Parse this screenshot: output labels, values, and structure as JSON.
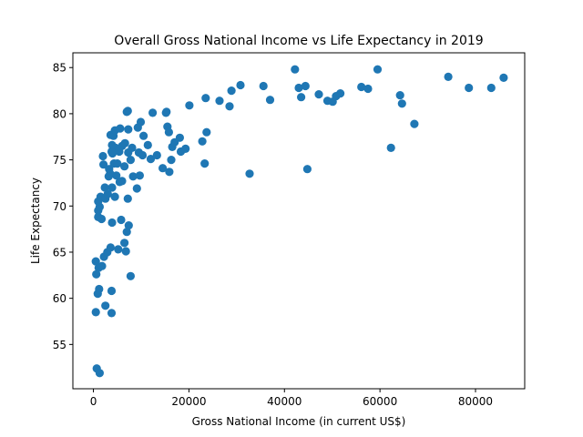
{
  "chart_data": {
    "type": "scatter",
    "title": "Overall Gross National Income vs Life Expectancy in 2019",
    "xlabel": "Gross National Income (in current US$)",
    "ylabel": "Life Expectancy",
    "xlim": [
      -4300,
      90300
    ],
    "ylim": [
      50.2,
      86.6
    ],
    "xticks": [
      0,
      20000,
      40000,
      60000,
      80000
    ],
    "yticks": [
      55,
      60,
      65,
      70,
      75,
      80,
      85
    ],
    "grid": false,
    "legend": "none",
    "marker_color": "#1f77b4",
    "series": [
      {
        "points": [
          [
            700,
            52.4
          ],
          [
            1300,
            51.9
          ],
          [
            500,
            58.5
          ],
          [
            3800,
            58.4
          ],
          [
            2500,
            59.2
          ],
          [
            3800,
            60.8
          ],
          [
            900,
            60.5
          ],
          [
            1200,
            61.0
          ],
          [
            7800,
            62.4
          ],
          [
            600,
            62.6
          ],
          [
            1100,
            63.3
          ],
          [
            1800,
            63.5
          ],
          [
            500,
            64.0
          ],
          [
            2200,
            64.5
          ],
          [
            2900,
            65.0
          ],
          [
            3600,
            65.5
          ],
          [
            5200,
            65.3
          ],
          [
            6800,
            65.1
          ],
          [
            6500,
            66.0
          ],
          [
            7000,
            67.2
          ],
          [
            7400,
            67.9
          ],
          [
            5800,
            68.5
          ],
          [
            3900,
            68.2
          ],
          [
            1000,
            68.8
          ],
          [
            1700,
            68.6
          ],
          [
            1000,
            69.5
          ],
          [
            1300,
            69.9
          ],
          [
            1000,
            70.5
          ],
          [
            1500,
            71.0
          ],
          [
            2500,
            70.8
          ],
          [
            3000,
            71.3
          ],
          [
            4500,
            71.0
          ],
          [
            5500,
            72.6
          ],
          [
            4800,
            73.3
          ],
          [
            7200,
            70.8
          ],
          [
            9100,
            71.9
          ],
          [
            8300,
            73.2
          ],
          [
            9700,
            73.3
          ],
          [
            3900,
            72.0
          ],
          [
            2400,
            72.0
          ],
          [
            3500,
            73.5
          ],
          [
            3300,
            74.0
          ],
          [
            2100,
            74.5
          ],
          [
            4300,
            74.6
          ],
          [
            5000,
            74.6
          ],
          [
            6500,
            74.3
          ],
          [
            3200,
            73.2
          ],
          [
            6000,
            72.7
          ],
          [
            4000,
            75.7
          ],
          [
            4600,
            76.3
          ],
          [
            3800,
            75.9
          ],
          [
            5400,
            75.9
          ],
          [
            6000,
            76.5
          ],
          [
            7300,
            75.8
          ],
          [
            6600,
            76.8
          ],
          [
            8100,
            76.3
          ],
          [
            7800,
            75.0
          ],
          [
            9500,
            75.8
          ],
          [
            10300,
            75.5
          ],
          [
            12000,
            75.1
          ],
          [
            13300,
            75.5
          ],
          [
            11400,
            76.6
          ],
          [
            14500,
            74.1
          ],
          [
            15900,
            73.7
          ],
          [
            16300,
            75.0
          ],
          [
            16500,
            76.4
          ],
          [
            17000,
            76.9
          ],
          [
            18300,
            75.9
          ],
          [
            19300,
            76.2
          ],
          [
            22800,
            77.0
          ],
          [
            23300,
            74.6
          ],
          [
            32700,
            73.5
          ],
          [
            44800,
            74.0
          ],
          [
            2000,
            75.4
          ],
          [
            3900,
            76.6
          ],
          [
            4200,
            77.6
          ],
          [
            3600,
            77.7
          ],
          [
            4500,
            78.2
          ],
          [
            5600,
            78.4
          ],
          [
            7300,
            78.3
          ],
          [
            7000,
            80.2
          ],
          [
            7200,
            80.3
          ],
          [
            9300,
            78.5
          ],
          [
            9900,
            79.1
          ],
          [
            10500,
            77.6
          ],
          [
            12400,
            80.1
          ],
          [
            15200,
            80.1
          ],
          [
            15300,
            80.2
          ],
          [
            15500,
            78.6
          ],
          [
            15800,
            78.0
          ],
          [
            18100,
            77.4
          ],
          [
            20100,
            80.9
          ],
          [
            23500,
            81.7
          ],
          [
            23700,
            78.0
          ],
          [
            26400,
            81.4
          ],
          [
            28500,
            80.8
          ],
          [
            28900,
            82.5
          ],
          [
            30800,
            83.1
          ],
          [
            35600,
            83.0
          ],
          [
            37000,
            81.5
          ],
          [
            42200,
            84.8
          ],
          [
            43000,
            82.8
          ],
          [
            43500,
            81.8
          ],
          [
            44400,
            83.0
          ],
          [
            47200,
            82.1
          ],
          [
            49000,
            81.4
          ],
          [
            50100,
            81.3
          ],
          [
            50800,
            81.9
          ],
          [
            51700,
            82.2
          ],
          [
            56100,
            82.9
          ],
          [
            57500,
            82.7
          ],
          [
            59500,
            84.8
          ],
          [
            62300,
            76.3
          ],
          [
            64200,
            82.0
          ],
          [
            64600,
            81.1
          ],
          [
            67200,
            78.9
          ],
          [
            74300,
            84.0
          ],
          [
            78600,
            82.8
          ],
          [
            83300,
            82.8
          ],
          [
            85900,
            83.9
          ]
        ]
      }
    ]
  }
}
